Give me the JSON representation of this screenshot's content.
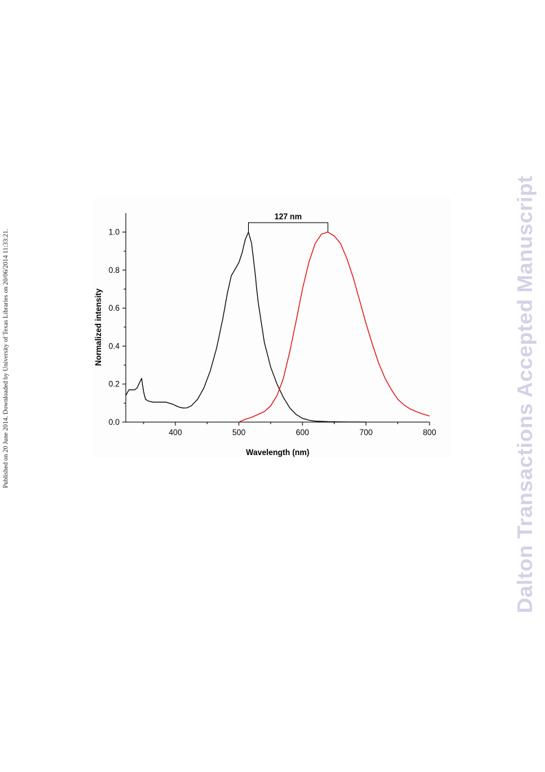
{
  "page": {
    "side_note": "Published on 20 June 2014. Downloaded by University of Texas Libraries on 20/06/2014 11:33:21.",
    "watermark": "Dalton Transactions Accepted Manuscript"
  },
  "chart_data": {
    "type": "line",
    "title": "",
    "xlabel": "Wavelength (nm)",
    "ylabel": "Normalized intensity",
    "xlim": [
      322,
      800
    ],
    "ylim": [
      0,
      1.1
    ],
    "x_ticks": [
      400,
      500,
      600,
      700,
      800
    ],
    "y_ticks": [
      0.0,
      0.2,
      0.4,
      0.6,
      0.8,
      1.0
    ],
    "x_tick_labels": [
      "400",
      "500",
      "600",
      "700",
      "800"
    ],
    "y_tick_labels": [
      "0.0",
      "0.2",
      "0.4",
      "0.6",
      "0.8",
      "1.0"
    ],
    "grid": false,
    "annotation": {
      "text": "127 nm",
      "x_start": 515,
      "x_end": 640
    },
    "series": [
      {
        "color": "#000000",
        "x": [
          322,
          327,
          332,
          336,
          340,
          344,
          347,
          350,
          353,
          358,
          365,
          375,
          385,
          395,
          405,
          412,
          418,
          425,
          435,
          445,
          455,
          465,
          475,
          482,
          488,
          495,
          500,
          505,
          510,
          515,
          520,
          525,
          530,
          540,
          550,
          560,
          570,
          580,
          590,
          600,
          610,
          620,
          640,
          660,
          680,
          700
        ],
        "y": [
          0.14,
          0.17,
          0.17,
          0.17,
          0.18,
          0.21,
          0.23,
          0.16,
          0.12,
          0.11,
          0.105,
          0.105,
          0.105,
          0.095,
          0.08,
          0.074,
          0.075,
          0.085,
          0.12,
          0.18,
          0.27,
          0.39,
          0.55,
          0.68,
          0.77,
          0.81,
          0.84,
          0.89,
          0.96,
          1.0,
          0.94,
          0.8,
          0.64,
          0.42,
          0.29,
          0.2,
          0.13,
          0.075,
          0.04,
          0.02,
          0.01,
          0.005,
          0.002,
          0.001,
          0.0005,
          0.0
        ]
      },
      {
        "color": "#e00000",
        "x": [
          500,
          510,
          520,
          530,
          540,
          550,
          560,
          570,
          580,
          590,
          600,
          610,
          620,
          630,
          640,
          650,
          660,
          670,
          680,
          690,
          700,
          710,
          720,
          730,
          740,
          750,
          760,
          770,
          780,
          790,
          800
        ],
        "y": [
          0.0,
          0.015,
          0.025,
          0.04,
          0.055,
          0.085,
          0.14,
          0.23,
          0.37,
          0.53,
          0.7,
          0.84,
          0.94,
          0.99,
          1.0,
          0.98,
          0.94,
          0.86,
          0.76,
          0.64,
          0.52,
          0.41,
          0.31,
          0.23,
          0.17,
          0.12,
          0.09,
          0.068,
          0.054,
          0.042,
          0.032
        ]
      }
    ]
  }
}
